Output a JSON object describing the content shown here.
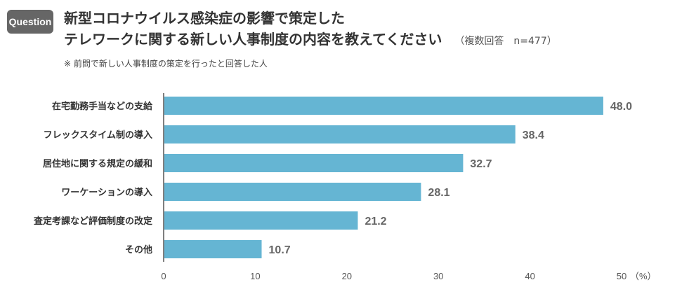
{
  "badge": "Question",
  "title": {
    "line1": "新型コロナウイルス感染症の影響で策定した",
    "line2": "テレワークに関する新しい人事制度の内容を教えてください",
    "note": "（複数回答　n=477）"
  },
  "footnote": "※ 前問で新しい人事制度の策定を行ったと回答した人",
  "colors": {
    "bar": "#65B5D3",
    "axis": "#555555"
  },
  "chart_data": {
    "type": "bar",
    "orientation": "horizontal",
    "title": "新型コロナウイルス感染症の影響で策定したテレワークに関する新しい人事制度の内容を教えてください",
    "categories": [
      "在宅勤務手当などの支給",
      "フレックスタイム制の導入",
      "居住地に関する規定の緩和",
      "ワーケーションの導入",
      "査定考課など評価制度の改定",
      "その他"
    ],
    "values": [
      48.0,
      38.4,
      32.7,
      28.1,
      21.2,
      10.7
    ],
    "value_labels": [
      "48.0",
      "38.4",
      "32.7",
      "28.1",
      "21.2",
      "10.7"
    ],
    "xlim": [
      0,
      50
    ],
    "ticks": [
      "0",
      "10",
      "20",
      "30",
      "40",
      "50"
    ],
    "unit": "（%）",
    "xlabel": "",
    "ylabel": "",
    "grid": false,
    "legend": "none"
  }
}
